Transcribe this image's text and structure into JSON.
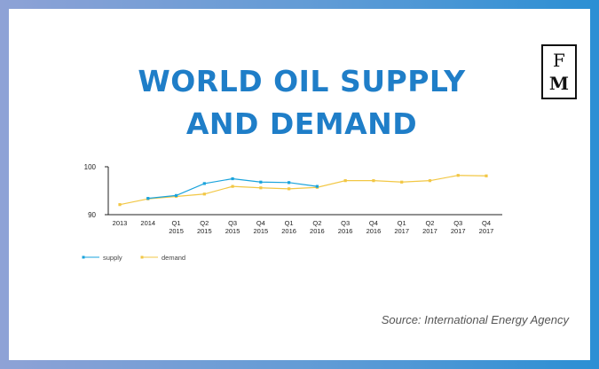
{
  "header": {
    "title_line1": "WORLD OIL SUPPLY",
    "title_line2": "AND DEMAND"
  },
  "logo": {
    "letter_top": "F",
    "letter_bottom": "M"
  },
  "source": "Source: International Energy Agency",
  "colors": {
    "title": "#1f7ec8",
    "supply": "#1aa3dc",
    "demand": "#f2c744",
    "frame": "#2b8fd4"
  },
  "chart_data": {
    "type": "line",
    "title": "",
    "xlabel": "",
    "ylabel": "",
    "ylim": [
      90,
      100
    ],
    "yticks": [
      "100",
      "90"
    ],
    "grid": false,
    "legend_position": "bottom-left",
    "categories": [
      [
        "2013"
      ],
      [
        "2014"
      ],
      [
        "Q1",
        "2015"
      ],
      [
        "Q2",
        "2015"
      ],
      [
        "Q3",
        "2015"
      ],
      [
        "Q4",
        "2015"
      ],
      [
        "Q1",
        "2016"
      ],
      [
        "Q2",
        "2016"
      ],
      [
        "Q3",
        "2016"
      ],
      [
        "Q4",
        "2016"
      ],
      [
        "Q1",
        "2017"
      ],
      [
        "Q2",
        "2017"
      ],
      [
        "Q3",
        "2017"
      ],
      [
        "Q4",
        "2017"
      ]
    ],
    "series": [
      {
        "name": "supply",
        "color": "#1aa3dc",
        "values": [
          null,
          93.4,
          94.0,
          96.5,
          97.5,
          96.8,
          96.7,
          95.9,
          null,
          null,
          null,
          null,
          null,
          null
        ]
      },
      {
        "name": "demand",
        "color": "#f2c744",
        "values": [
          92.1,
          93.3,
          93.8,
          94.3,
          95.9,
          95.6,
          95.4,
          95.7,
          97.1,
          97.1,
          96.8,
          97.1,
          98.2,
          98.1
        ]
      }
    ]
  }
}
